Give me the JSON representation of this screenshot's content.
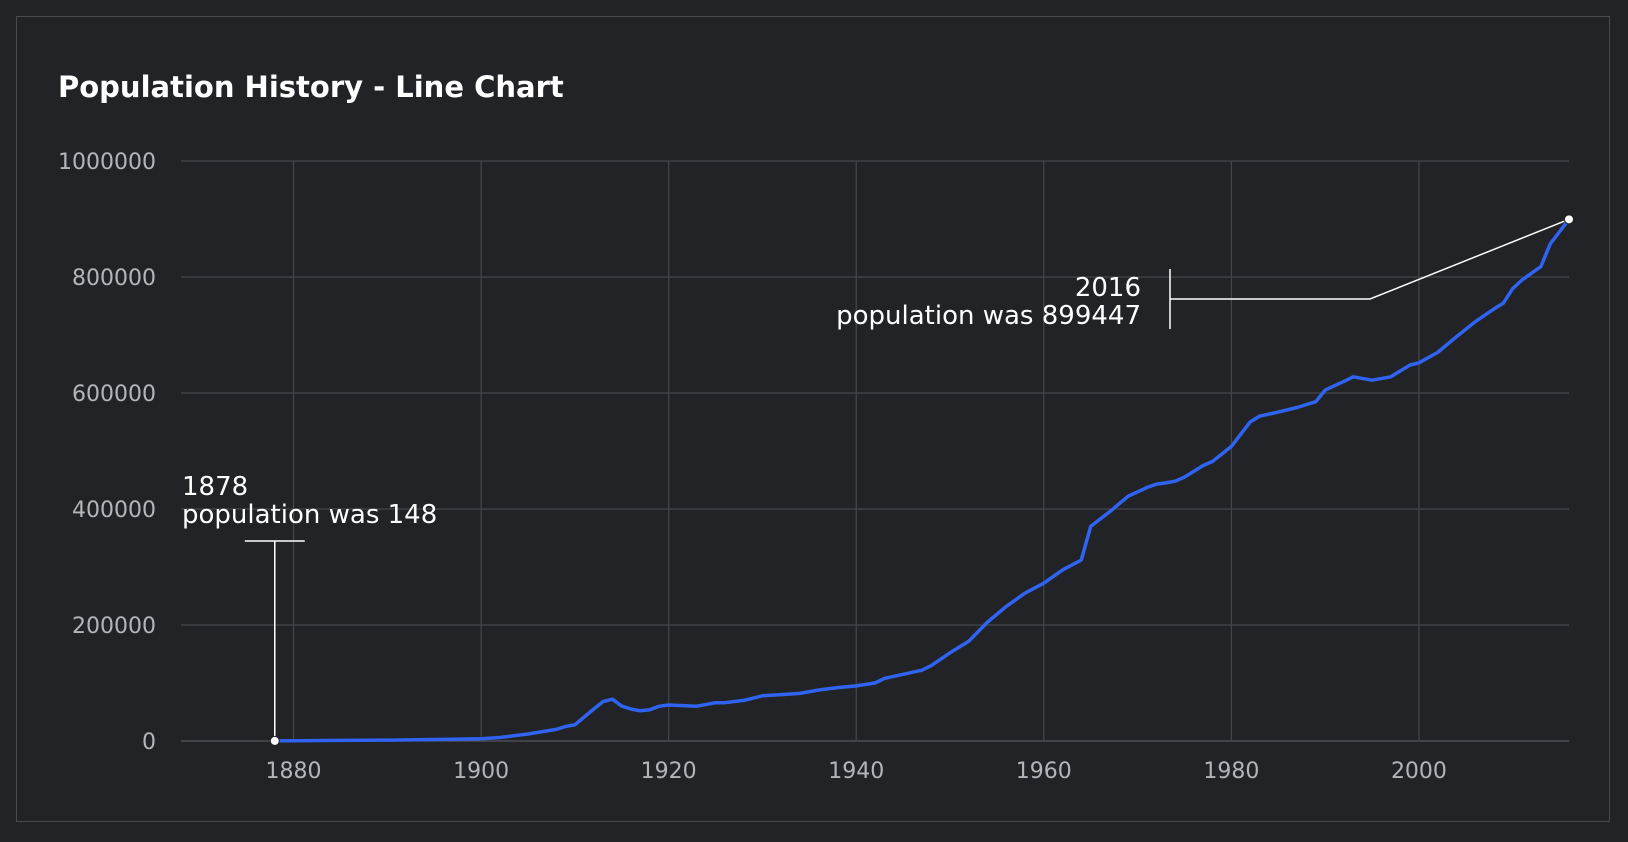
{
  "chart_data": {
    "type": "line",
    "title": "Population History - Line Chart",
    "xlabel": "",
    "ylabel": "",
    "xlim": [
      1868,
      2016
    ],
    "ylim": [
      0,
      1000000
    ],
    "x_ticks": [
      1880,
      1900,
      1920,
      1940,
      1960,
      1980,
      2000
    ],
    "y_ticks": [
      0,
      200000,
      400000,
      600000,
      800000,
      1000000
    ],
    "grid": true,
    "line_color": "#2f63f0",
    "series": [
      {
        "name": "",
        "x": [
          1878,
          1880,
          1885,
          1890,
          1895,
          1900,
          1902,
          1905,
          1908,
          1909,
          1910,
          1912,
          1913,
          1914,
          1915,
          1916,
          1917,
          1918,
          1919,
          1920,
          1923,
          1925,
          1926,
          1928,
          1930,
          1932,
          1934,
          1936,
          1938,
          1940,
          1942,
          1943,
          1945,
          1947,
          1948,
          1950,
          1952,
          1954,
          1956,
          1958,
          1960,
          1962,
          1964,
          1965,
          1967,
          1969,
          1971,
          1972,
          1973,
          1974,
          1975,
          1977,
          1978,
          1980,
          1982,
          1983,
          1985,
          1987,
          1989,
          1990,
          1992,
          1993,
          1995,
          1997,
          1999,
          2000,
          2002,
          2004,
          2006,
          2008,
          2009,
          2010,
          2011,
          2013,
          2014,
          2016
        ],
        "y": [
          148,
          500,
          1000,
          1500,
          2500,
          4000,
          6000,
          12000,
          20000,
          25000,
          28000,
          55000,
          68000,
          72000,
          60000,
          55000,
          52000,
          54000,
          60000,
          62000,
          60000,
          66000,
          66000,
          70000,
          78000,
          80000,
          82000,
          88000,
          92000,
          95000,
          100000,
          108000,
          115000,
          122000,
          130000,
          152000,
          172000,
          205000,
          232000,
          255000,
          272000,
          295000,
          312000,
          370000,
          395000,
          422000,
          437000,
          443000,
          445000,
          448000,
          455000,
          475000,
          482000,
          508000,
          550000,
          560000,
          567000,
          575000,
          585000,
          605000,
          620000,
          628000,
          622000,
          628000,
          648000,
          652000,
          670000,
          697000,
          723000,
          745000,
          755000,
          780000,
          795000,
          818000,
          857000,
          899447
        ]
      }
    ],
    "annotations": [
      {
        "x": 1878,
        "y": 148,
        "line1": "1878",
        "line2": "population was 148"
      },
      {
        "x": 2016,
        "y": 899447,
        "line1": "2016",
        "line2": "population was 899447"
      }
    ]
  }
}
